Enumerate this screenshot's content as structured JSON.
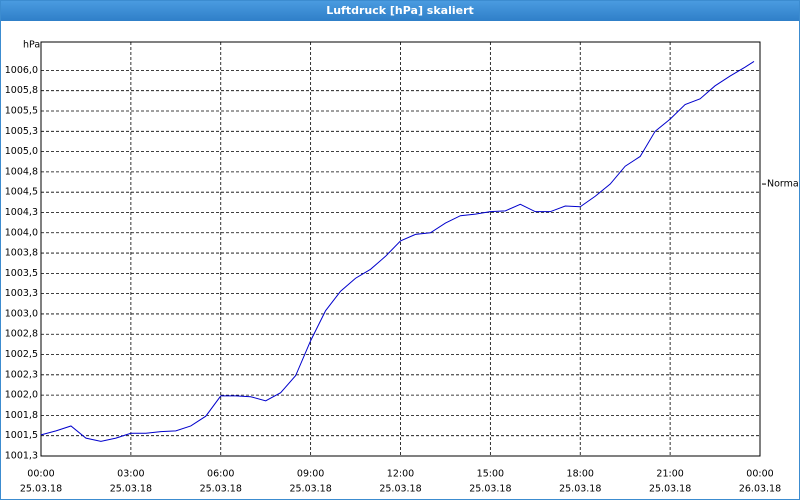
{
  "window_title": "Luftdruck [hPa] skaliert",
  "chart_data": {
    "type": "line",
    "y_label": "hPa",
    "x": [
      0,
      0.5,
      1,
      1.5,
      2,
      2.5,
      3,
      3.5,
      4,
      4.5,
      5,
      5.5,
      6,
      6.5,
      7,
      7.5,
      8,
      8.5,
      9,
      9.5,
      10,
      10.5,
      11,
      11.5,
      12,
      12.5,
      13,
      13.5,
      14,
      14.5,
      15,
      15.5,
      16,
      16.5,
      17,
      17.5,
      18,
      18.5,
      19,
      19.5,
      20,
      20.5,
      21,
      21.5,
      22,
      22.5,
      23,
      23.5,
      23.8
    ],
    "series": [
      {
        "color": "#0000cc",
        "values": [
          1001.51,
          1001.56,
          1001.62,
          1001.47,
          1001.43,
          1001.47,
          1001.53,
          1001.53,
          1001.55,
          1001.56,
          1001.62,
          1001.74,
          1001.99,
          1001.99,
          1001.98,
          1001.93,
          1002.03,
          1002.24,
          1002.67,
          1003.04,
          1003.28,
          1003.44,
          1003.55,
          1003.71,
          1003.9,
          1003.98,
          1004.0,
          1004.12,
          1004.21,
          1004.23,
          1004.26,
          1004.27,
          1004.35,
          1004.26,
          1004.26,
          1004.33,
          1004.32,
          1004.45,
          1004.6,
          1004.82,
          1004.94,
          1005.25,
          1005.4,
          1005.58,
          1005.65,
          1005.81,
          1005.93,
          1006.04,
          1006.11
        ]
      }
    ],
    "xlim": [
      0,
      24
    ],
    "xticks": [
      {
        "value": 0,
        "label": "00:00",
        "date": "25.03.18"
      },
      {
        "value": 3,
        "label": "03:00",
        "date": "25.03.18"
      },
      {
        "value": 6,
        "label": "06:00",
        "date": "25.03.18"
      },
      {
        "value": 9,
        "label": "09:00",
        "date": "25.03.18"
      },
      {
        "value": 12,
        "label": "12:00",
        "date": "25.03.18"
      },
      {
        "value": 15,
        "label": "15:00",
        "date": "25.03.18"
      },
      {
        "value": 18,
        "label": "18:00",
        "date": "25.03.18"
      },
      {
        "value": 21,
        "label": "21:00",
        "date": "25.03.18"
      },
      {
        "value": 24,
        "label": "00:00",
        "date": "26.03.18"
      }
    ],
    "ylim": [
      1001.25,
      1006.35
    ],
    "yticks": [
      {
        "value": 1001.25,
        "label": "1001,3"
      },
      {
        "value": 1001.5,
        "label": "1001,5"
      },
      {
        "value": 1001.75,
        "label": "1001,8"
      },
      {
        "value": 1002.0,
        "label": "1002,0"
      },
      {
        "value": 1002.25,
        "label": "1002,3"
      },
      {
        "value": 1002.5,
        "label": "1002,5"
      },
      {
        "value": 1002.75,
        "label": "1002,8"
      },
      {
        "value": 1003.0,
        "label": "1003,0"
      },
      {
        "value": 1003.25,
        "label": "1003,3"
      },
      {
        "value": 1003.5,
        "label": "1003,5"
      },
      {
        "value": 1003.75,
        "label": "1003,8"
      },
      {
        "value": 1004.0,
        "label": "1004,0"
      },
      {
        "value": 1004.25,
        "label": "1004,3"
      },
      {
        "value": 1004.5,
        "label": "1004,5"
      },
      {
        "value": 1004.75,
        "label": "1004,8"
      },
      {
        "value": 1005.0,
        "label": "1005,0"
      },
      {
        "value": 1005.25,
        "label": "1005,3"
      },
      {
        "value": 1005.5,
        "label": "1005,5"
      },
      {
        "value": 1005.75,
        "label": "1005,8"
      },
      {
        "value": 1006.0,
        "label": "1006,0"
      }
    ],
    "grid": true,
    "annotation": {
      "text": "Normal",
      "value": 1004.6
    }
  }
}
